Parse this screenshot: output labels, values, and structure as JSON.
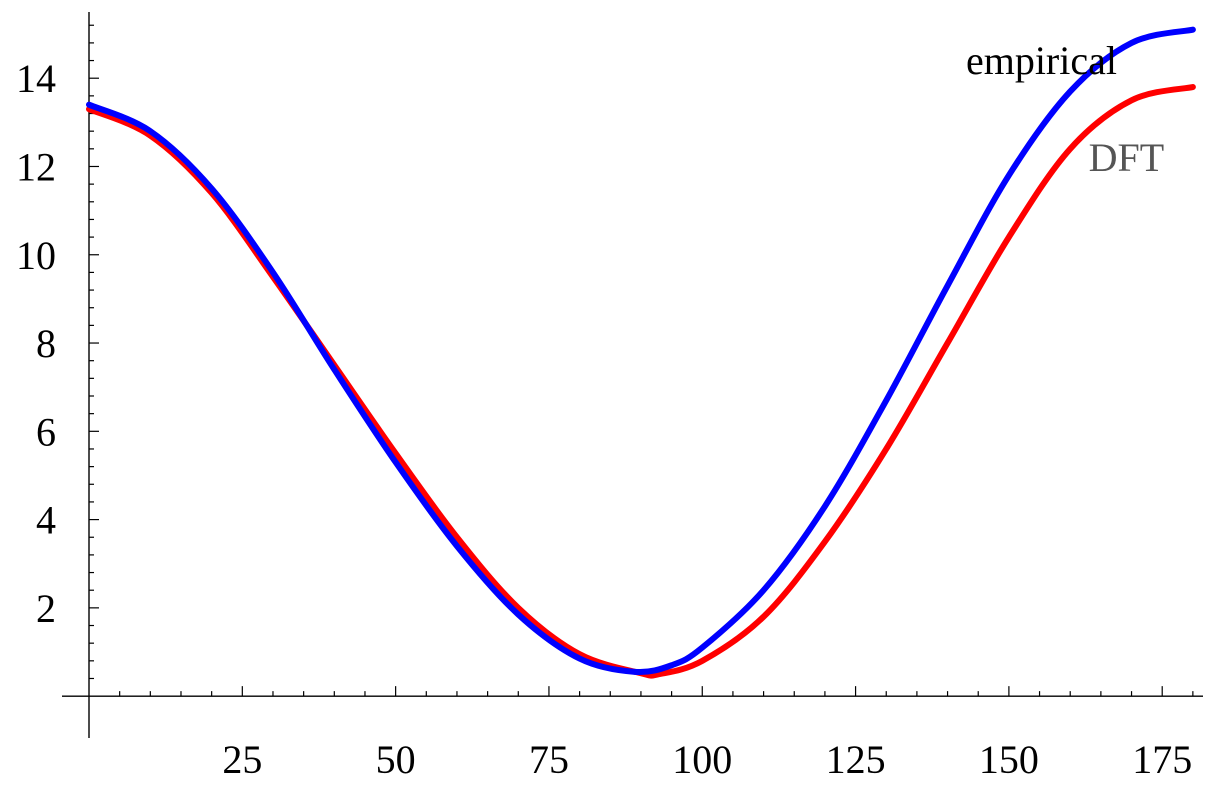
{
  "chart_data": {
    "type": "line",
    "title": "",
    "xlabel": "",
    "ylabel": "",
    "xlim": [
      0,
      181
    ],
    "ylim": [
      -0.45,
      15.5
    ],
    "x_ticks": [
      25,
      50,
      75,
      100,
      125,
      150,
      175
    ],
    "y_ticks": [
      2,
      4,
      6,
      8,
      10,
      12,
      14
    ],
    "x_minor_step": 5,
    "y_minor_step": 0.4,
    "grid": false,
    "series": [
      {
        "name": "DFT",
        "color": "#ff0000",
        "x": [
          0,
          10,
          20,
          30,
          40,
          50,
          60,
          70,
          80,
          90,
          93,
          100,
          110,
          120,
          130,
          140,
          150,
          160,
          170,
          180
        ],
        "y": [
          13.3,
          12.7,
          11.4,
          9.5,
          7.5,
          5.5,
          3.6,
          2.0,
          0.95,
          0.52,
          0.5,
          0.8,
          1.8,
          3.5,
          5.6,
          8.0,
          10.4,
          12.4,
          13.5,
          13.8
        ]
      },
      {
        "name": "empirical",
        "color": "#0000ff",
        "x": [
          0,
          10,
          20,
          30,
          40,
          50,
          60,
          70,
          80,
          89,
          95,
          100,
          110,
          120,
          130,
          140,
          150,
          160,
          170,
          180
        ],
        "y": [
          13.4,
          12.8,
          11.5,
          9.6,
          7.4,
          5.3,
          3.4,
          1.85,
          0.85,
          0.55,
          0.7,
          1.1,
          2.4,
          4.3,
          6.7,
          9.3,
          11.8,
          13.7,
          14.8,
          15.1
        ]
      }
    ],
    "annotations": [
      {
        "text": "empirical",
        "color": "#000000",
        "x": 143,
        "y": 14.1
      },
      {
        "text": "DFT",
        "color": "#555555",
        "x": 163,
        "y": 11.9
      }
    ]
  }
}
